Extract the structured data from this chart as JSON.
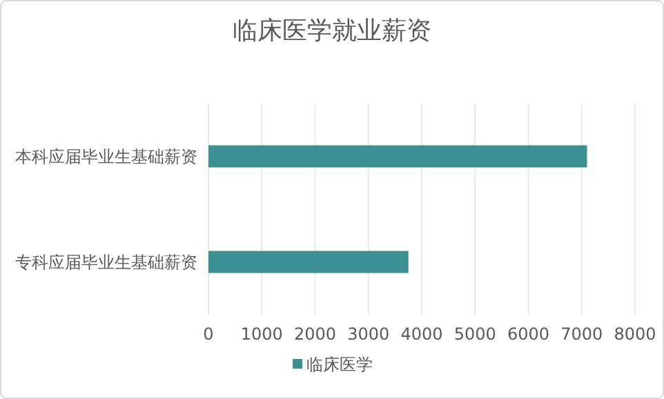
{
  "chart_data": {
    "type": "bar",
    "title": "临床医学就业薪资",
    "orientation": "horizontal",
    "categories": [
      "本科应届毕业生基础薪资",
      "专科应届毕业生基础薪资"
    ],
    "series": [
      {
        "name": "临床医学",
        "color": "#3c8f93",
        "values": [
          7100,
          3750
        ]
      }
    ],
    "xlim": [
      0,
      8000
    ],
    "xticks": [
      0,
      1000,
      2000,
      3000,
      4000,
      5000,
      6000,
      7000,
      8000
    ],
    "grid": "x",
    "legend": "bottom"
  }
}
